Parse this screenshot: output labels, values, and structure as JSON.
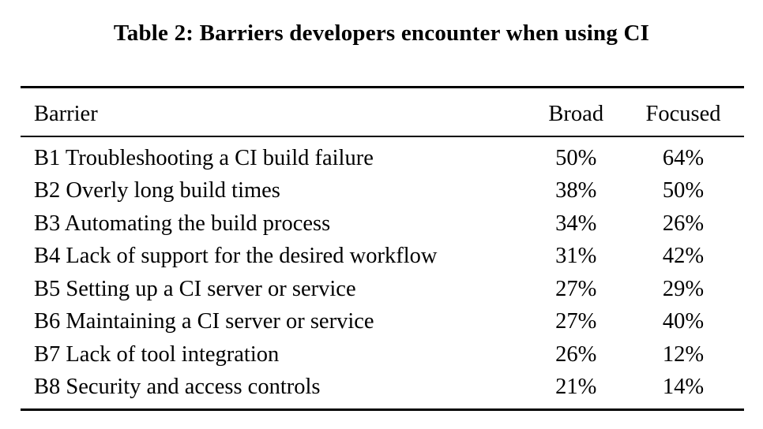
{
  "caption": "Table 2: Barriers developers encounter when using CI",
  "columns": {
    "barrier": "Barrier",
    "broad": "Broad",
    "focused": "Focused"
  },
  "rows": [
    {
      "barrier": "B1 Troubleshooting a CI build failure",
      "broad": "50%",
      "focused": "64%"
    },
    {
      "barrier": "B2 Overly long build times",
      "broad": "38%",
      "focused": "50%"
    },
    {
      "barrier": "B3 Automating the build process",
      "broad": "34%",
      "focused": "26%"
    },
    {
      "barrier": "B4 Lack of support for the desired workflow",
      "broad": "31%",
      "focused": "42%"
    },
    {
      "barrier": "B5 Setting up a CI server or service",
      "broad": "27%",
      "focused": "29%"
    },
    {
      "barrier": "B6 Maintaining a CI server or service",
      "broad": "27%",
      "focused": "40%"
    },
    {
      "barrier": "B7 Lack of tool integration",
      "broad": "26%",
      "focused": "12%"
    },
    {
      "barrier": "B8 Security and access controls",
      "broad": "21%",
      "focused": "14%"
    }
  ]
}
